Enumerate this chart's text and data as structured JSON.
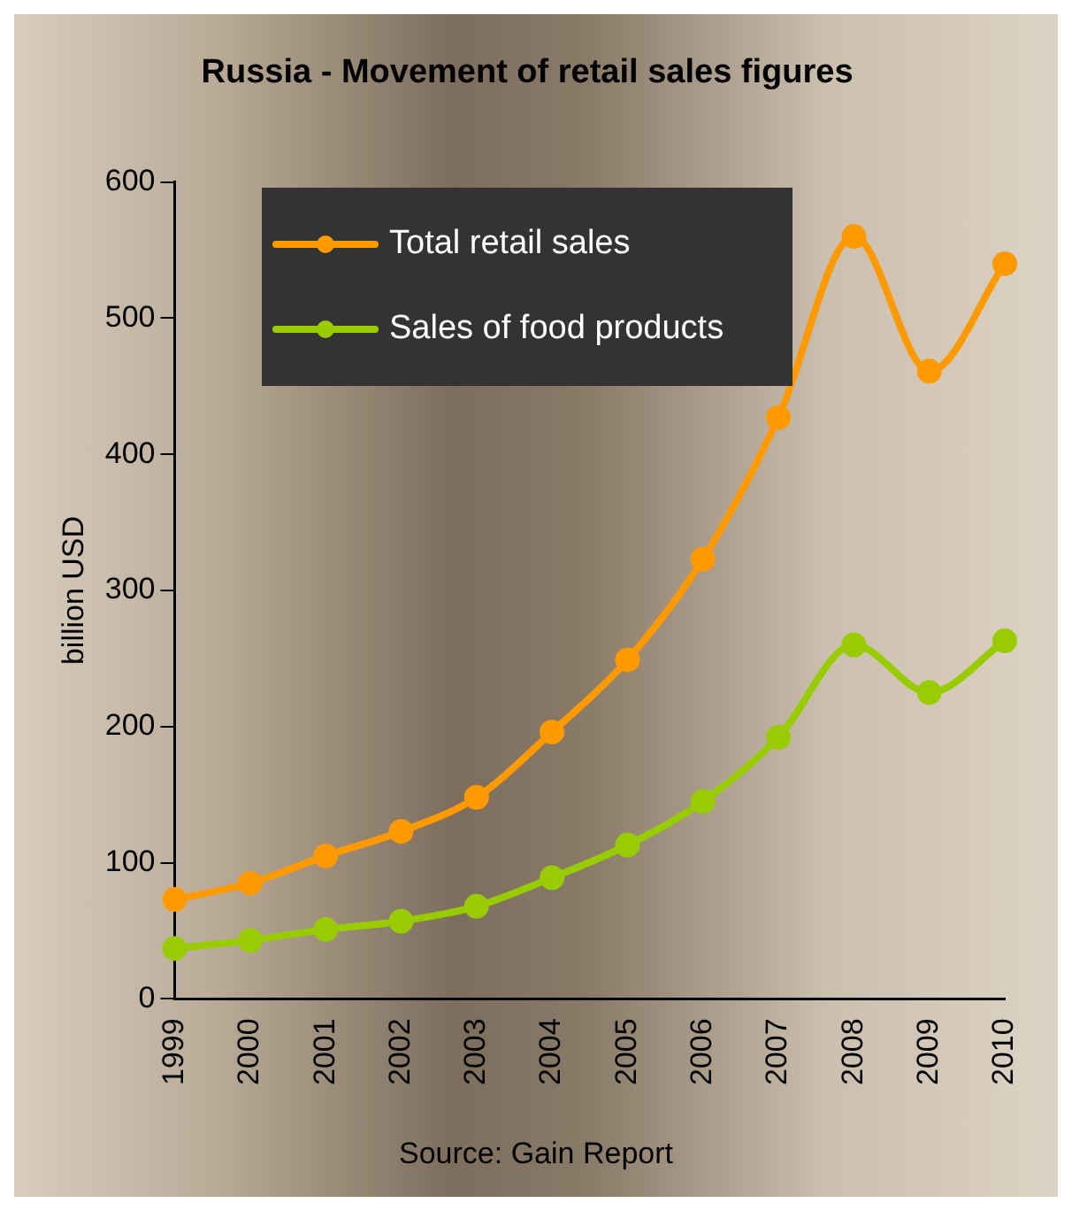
{
  "chart_data": {
    "type": "line",
    "title": "Russia - Movement of retail sales figures",
    "ylabel": "billion USD",
    "annotations": [
      "Source: Gain Report"
    ],
    "categories": [
      "1999",
      "2000",
      "2001",
      "2002",
      "2003",
      "2004",
      "2005",
      "2006",
      "2007",
      "2008",
      "2009",
      "2010"
    ],
    "series": [
      {
        "name": "Total retail sales",
        "color": "#ff9900",
        "values": [
          73,
          85,
          105,
          123,
          148,
          196,
          249,
          323,
          427,
          560,
          461,
          540
        ]
      },
      {
        "name": "Sales of food products",
        "color": "#99cc00",
        "values": [
          37,
          43,
          51,
          57,
          68,
          89,
          113,
          145,
          192,
          260,
          225,
          263
        ]
      }
    ],
    "ylim": [
      0,
      600
    ],
    "yticks": [
      0,
      100,
      200,
      300,
      400,
      500,
      600
    ],
    "grid": false,
    "legend": "top left",
    "marker": "circle",
    "line_style": "solid"
  }
}
